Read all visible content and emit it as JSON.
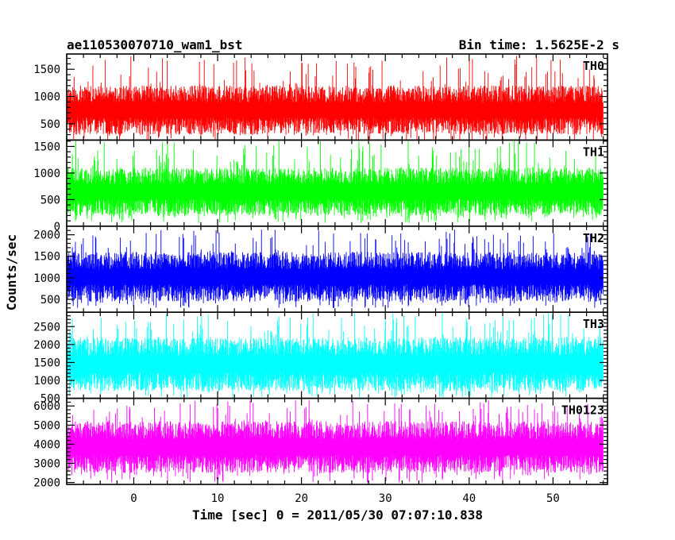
{
  "header": {
    "title": "ae110530070710_wam1_bst",
    "bin_time": "Bin time: 1.5625E-2 s"
  },
  "chart_data": {
    "type": "line",
    "xlabel": "Time [sec] 0 = 2011/05/30 07:07:10.838",
    "ylabel": "Counts/sec",
    "xlim": [
      -8,
      56.5
    ],
    "x_ticks": [
      0,
      10,
      20,
      30,
      40,
      50
    ],
    "x_data_range": [
      -7.9,
      56.0
    ],
    "panels": [
      {
        "name": "TH0",
        "color": "#ff0000",
        "ylim": [
          200,
          1780
        ],
        "y_ticks": [
          500,
          1000,
          1500
        ],
        "base_range": [
          300,
          1200
        ],
        "peak": 1760,
        "floor": 150
      },
      {
        "name": "TH1",
        "color": "#00ff00",
        "ylim": [
          0,
          1620
        ],
        "y_ticks": [
          0,
          500,
          1000,
          1500
        ],
        "base_range": [
          200,
          1100
        ],
        "peak": 1620,
        "floor": 60
      },
      {
        "name": "TH2",
        "color": "#0000ff",
        "ylim": [
          200,
          2200
        ],
        "y_ticks": [
          500,
          1000,
          1500,
          2000
        ],
        "base_range": [
          450,
          1600
        ],
        "peak": 2120,
        "floor": 300
      },
      {
        "name": "TH3",
        "color": "#00ffff",
        "ylim": [
          500,
          2900
        ],
        "y_ticks": [
          500,
          1000,
          1500,
          2000,
          2500
        ],
        "base_range": [
          700,
          2200
        ],
        "peak": 2900,
        "floor": 520
      },
      {
        "name": "TH0123",
        "color": "#ff00ff",
        "ylim": [
          1900,
          6400
        ],
        "y_ticks": [
          2000,
          3000,
          4000,
          5000,
          6000
        ],
        "base_range": [
          2500,
          5200
        ],
        "peak": 6300,
        "floor": 2000
      }
    ]
  }
}
